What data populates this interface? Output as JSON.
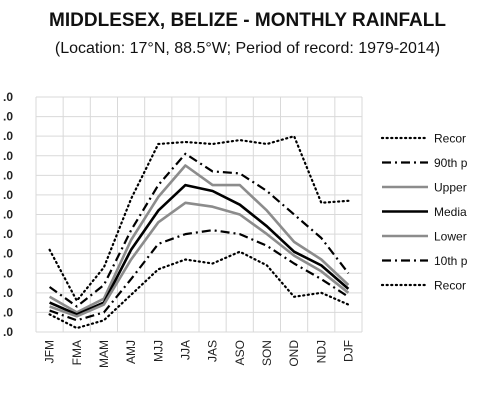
{
  "chart_data": {
    "type": "line",
    "title": "MIDDLESEX, BELIZE - MONTHLY RAINFALL",
    "subtitle": "(Location: 17°N, 88.5°W; Period of record: 1979-2014)",
    "categories": [
      "JFM",
      "FMA",
      "MAM",
      "AMJ",
      "MJJ",
      "JJA",
      "JAS",
      "ASO",
      "SON",
      "OND",
      "NDJ",
      "DJF"
    ],
    "y_tick_labels": [
      ".0",
      ".0",
      ".0",
      ".0",
      ".0",
      ".0",
      ".0",
      ".0",
      ".0",
      ".0",
      ".0",
      ".0",
      ".0"
    ],
    "ylim": [
      0,
      12
    ],
    "grid": true,
    "legend_position": "right",
    "series": [
      {
        "name": "Recor",
        "style": "dotted",
        "color": "#000000",
        "width": 2.2,
        "values": [
          4.2,
          1.6,
          3.3,
          6.8,
          9.6,
          9.7,
          9.6,
          9.8,
          9.6,
          10.0,
          6.6,
          6.7
        ]
      },
      {
        "name": "90th p",
        "style": "dashdot",
        "color": "#000000",
        "width": 2.2,
        "values": [
          2.3,
          1.3,
          2.4,
          5.2,
          7.5,
          9.1,
          8.2,
          8.1,
          7.2,
          6.0,
          4.8,
          3.0
        ]
      },
      {
        "name": "Upper",
        "style": "solid",
        "color": "#8c8c8c",
        "width": 2.6,
        "values": [
          1.8,
          1.0,
          1.7,
          4.7,
          6.9,
          8.5,
          7.5,
          7.5,
          6.2,
          4.6,
          3.7,
          2.4
        ]
      },
      {
        "name": "Media",
        "style": "solid",
        "color": "#000000",
        "width": 2.6,
        "values": [
          1.5,
          0.9,
          1.5,
          4.2,
          6.2,
          7.5,
          7.2,
          6.5,
          5.4,
          4.1,
          3.4,
          2.2
        ]
      },
      {
        "name": "Lower",
        "style": "solid",
        "color": "#8c8c8c",
        "width": 2.6,
        "values": [
          1.3,
          0.8,
          1.4,
          3.7,
          5.6,
          6.6,
          6.4,
          6.0,
          5.0,
          3.9,
          3.1,
          2.0
        ]
      },
      {
        "name": "10th p",
        "style": "dashdot",
        "color": "#000000",
        "width": 2.2,
        "values": [
          1.1,
          0.6,
          1.0,
          2.7,
          4.5,
          5.0,
          5.2,
          5.0,
          4.4,
          3.5,
          2.7,
          1.8
        ]
      },
      {
        "name": "Recor",
        "style": "dotted",
        "color": "#000000",
        "width": 2.2,
        "values": [
          0.9,
          0.2,
          0.6,
          1.9,
          3.2,
          3.7,
          3.5,
          4.1,
          3.4,
          1.8,
          2.0,
          1.4
        ]
      }
    ]
  }
}
